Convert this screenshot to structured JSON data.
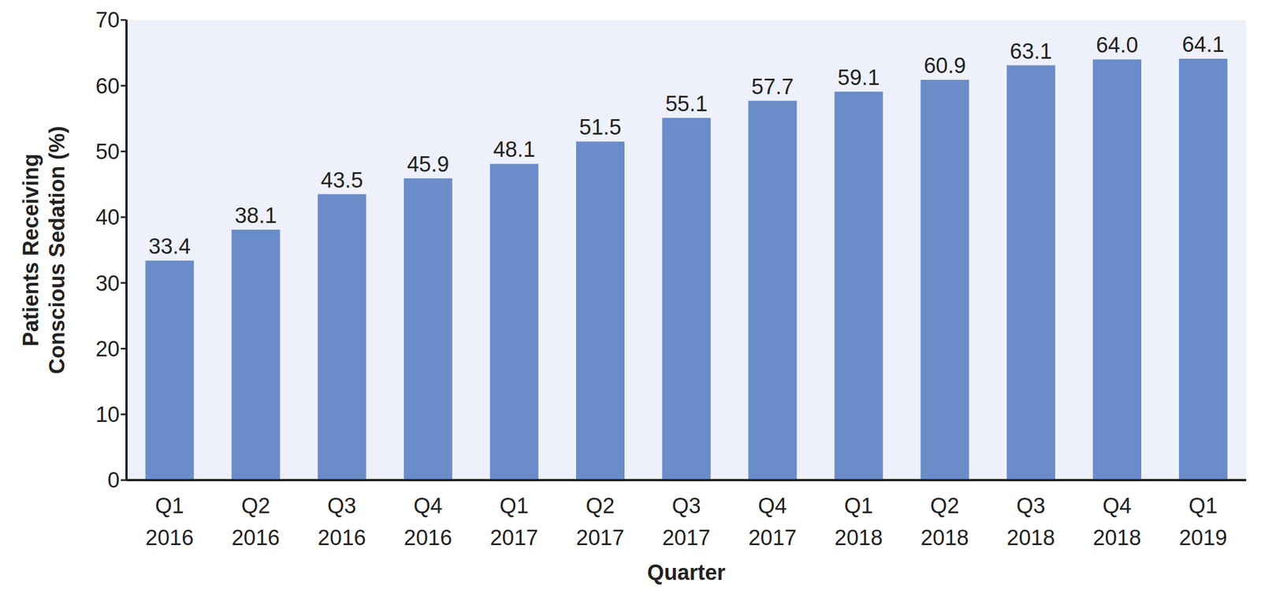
{
  "chart_data": {
    "type": "bar",
    "x_label": "Quarter",
    "y_label": "Patients Receiving Conscious Sedation (%)",
    "categories": [
      "Q1 2016",
      "Q2 2016",
      "Q3 2016",
      "Q4 2016",
      "Q1 2017",
      "Q2 2017",
      "Q3 2017",
      "Q4 2017",
      "Q1 2018",
      "Q2 2018",
      "Q3 2018",
      "Q4 2018",
      "Q1 2019"
    ],
    "values": [
      33.4,
      38.1,
      43.5,
      45.9,
      48.1,
      51.5,
      55.1,
      57.7,
      59.1,
      60.9,
      63.1,
      64.0,
      64.1
    ],
    "value_labels": [
      "33.4",
      "38.1",
      "43.5",
      "45.9",
      "48.1",
      "51.5",
      "55.1",
      "57.7",
      "59.1",
      "60.9",
      "63.1",
      "64.0",
      "64.1"
    ],
    "color": "#6a8cc8",
    "ylim": [
      0,
      70
    ],
    "yticks": [
      0,
      10,
      20,
      30,
      40,
      50,
      60,
      70
    ],
    "grid": false,
    "data_labels": true
  }
}
